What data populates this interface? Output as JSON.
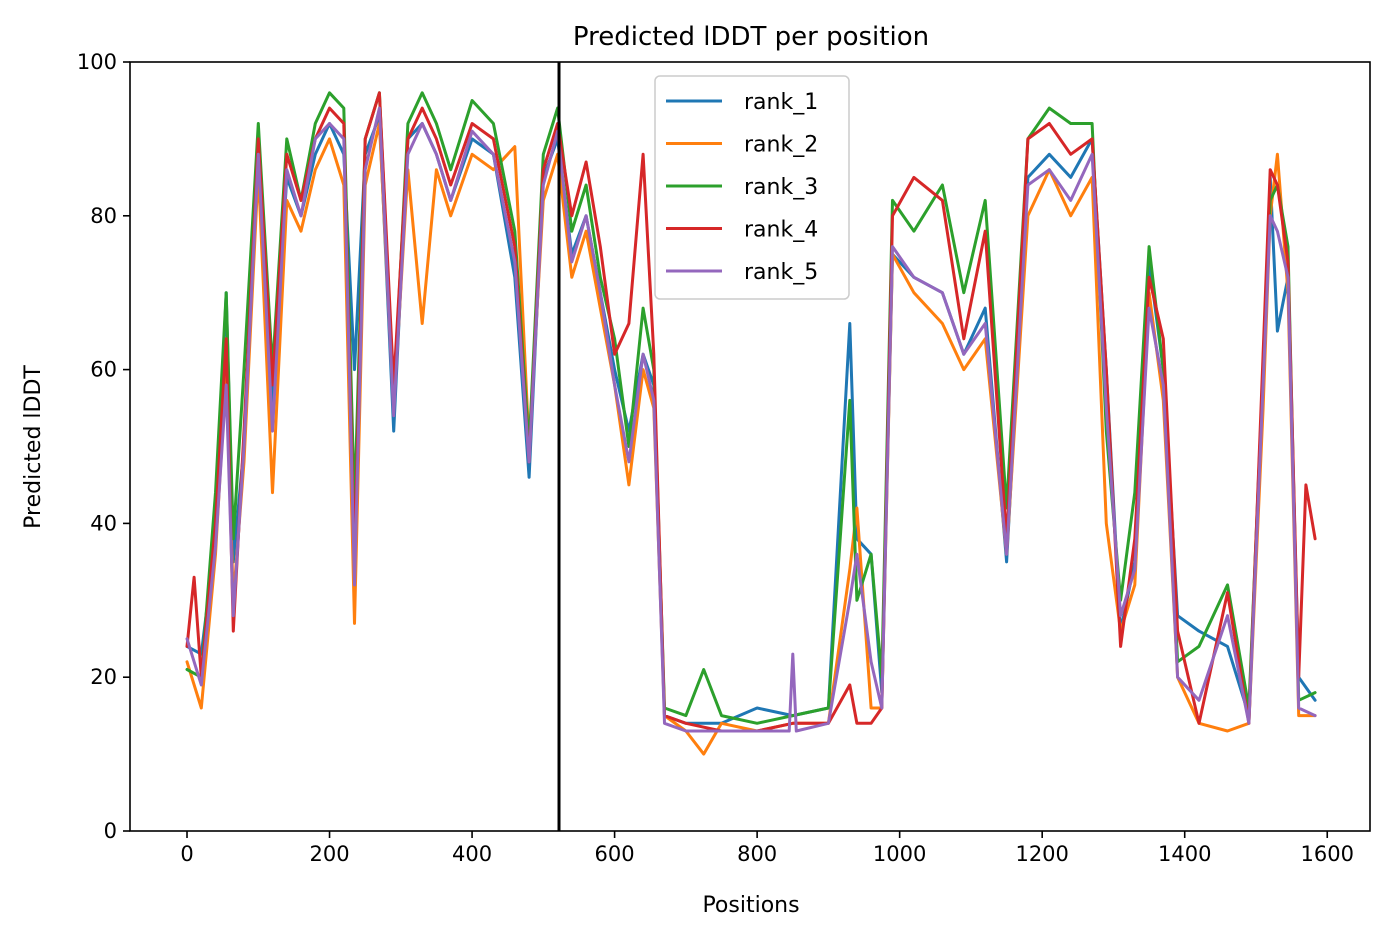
{
  "chart_data": {
    "type": "line",
    "title": "Predicted lDDT per position",
    "xlabel": "Positions",
    "ylabel": "Predicted lDDT",
    "xlim": [
      -80,
      1660
    ],
    "ylim": [
      0,
      100
    ],
    "xticks": [
      0,
      200,
      400,
      600,
      800,
      1000,
      1200,
      1400,
      1600
    ],
    "yticks": [
      0,
      20,
      40,
      60,
      80,
      100
    ],
    "grid": false,
    "legend_position": "top-center",
    "vline_x": 522,
    "series": [
      {
        "name": "rank_1",
        "color": "#1f77b4",
        "x": [
          0,
          20,
          40,
          55,
          65,
          80,
          100,
          120,
          140,
          160,
          180,
          200,
          220,
          235,
          250,
          270,
          290,
          310,
          330,
          350,
          370,
          400,
          430,
          460,
          480,
          500,
          520,
          540,
          560,
          580,
          600,
          620,
          640,
          655,
          670,
          700,
          750,
          800,
          850,
          900,
          930,
          940,
          960,
          975,
          990,
          1020,
          1060,
          1090,
          1120,
          1150,
          1180,
          1210,
          1240,
          1270,
          1290,
          1310,
          1330,
          1350,
          1370,
          1390,
          1420,
          1460,
          1490,
          1510,
          1520,
          1530,
          1545,
          1560,
          1583
        ],
        "y": [
          24,
          23,
          38,
          70,
          35,
          50,
          88,
          55,
          85,
          80,
          88,
          92,
          88,
          60,
          88,
          93,
          52,
          90,
          92,
          88,
          82,
          90,
          88,
          72,
          46,
          85,
          90,
          75,
          80,
          70,
          60,
          52,
          62,
          58,
          15,
          14,
          14,
          16,
          15,
          16,
          66,
          38,
          36,
          18,
          75,
          72,
          70,
          62,
          68,
          35,
          85,
          88,
          85,
          90,
          60,
          26,
          35,
          74,
          60,
          28,
          26,
          24,
          15,
          60,
          85,
          65,
          72,
          20,
          17
        ]
      },
      {
        "name": "rank_2",
        "color": "#ff7f0e",
        "x": [
          0,
          20,
          40,
          55,
          65,
          80,
          100,
          120,
          140,
          160,
          180,
          200,
          220,
          235,
          250,
          270,
          290,
          310,
          330,
          350,
          370,
          400,
          430,
          460,
          480,
          500,
          520,
          540,
          560,
          580,
          600,
          620,
          640,
          655,
          670,
          700,
          725,
          750,
          800,
          850,
          900,
          930,
          940,
          960,
          975,
          990,
          1020,
          1060,
          1090,
          1120,
          1150,
          1180,
          1210,
          1240,
          1270,
          1290,
          1310,
          1330,
          1350,
          1370,
          1390,
          1420,
          1460,
          1490,
          1510,
          1520,
          1530,
          1545,
          1560,
          1583
        ],
        "y": [
          22,
          16,
          36,
          60,
          30,
          48,
          86,
          44,
          82,
          78,
          86,
          90,
          84,
          27,
          84,
          92,
          55,
          86,
          66,
          86,
          80,
          88,
          86,
          89,
          50,
          82,
          88,
          72,
          78,
          68,
          58,
          45,
          60,
          55,
          15,
          13,
          10,
          14,
          13,
          14,
          14,
          34,
          42,
          16,
          16,
          75,
          70,
          66,
          60,
          64,
          36,
          80,
          86,
          80,
          85,
          40,
          26,
          32,
          70,
          56,
          20,
          14,
          13,
          14,
          55,
          80,
          88,
          70,
          15,
          15
        ]
      },
      {
        "name": "rank_3",
        "color": "#2ca02c",
        "x": [
          0,
          20,
          40,
          55,
          65,
          80,
          100,
          120,
          140,
          160,
          180,
          200,
          220,
          235,
          250,
          270,
          290,
          310,
          330,
          350,
          370,
          400,
          430,
          460,
          480,
          500,
          520,
          540,
          560,
          580,
          600,
          620,
          640,
          655,
          670,
          700,
          725,
          750,
          800,
          850,
          900,
          930,
          940,
          960,
          975,
          990,
          1020,
          1060,
          1090,
          1120,
          1150,
          1180,
          1210,
          1240,
          1270,
          1290,
          1310,
          1330,
          1350,
          1370,
          1390,
          1420,
          1460,
          1490,
          1510,
          1520,
          1530,
          1545,
          1560,
          1583
        ],
        "y": [
          21,
          20,
          44,
          70,
          38,
          60,
          92,
          60,
          90,
          82,
          92,
          96,
          94,
          42,
          90,
          96,
          56,
          92,
          96,
          92,
          86,
          95,
          92,
          78,
          50,
          88,
          94,
          78,
          84,
          72,
          64,
          50,
          68,
          60,
          16,
          15,
          21,
          15,
          14,
          15,
          16,
          56,
          30,
          36,
          20,
          82,
          78,
          84,
          70,
          82,
          42,
          90,
          94,
          92,
          92,
          52,
          30,
          44,
          76,
          60,
          22,
          24,
          32,
          16,
          60,
          82,
          84,
          76,
          17,
          18
        ]
      },
      {
        "name": "rank_4",
        "color": "#d62728",
        "x": [
          0,
          10,
          20,
          40,
          55,
          65,
          80,
          100,
          120,
          140,
          160,
          180,
          200,
          220,
          235,
          250,
          270,
          290,
          310,
          330,
          350,
          370,
          400,
          430,
          460,
          480,
          500,
          520,
          540,
          560,
          580,
          600,
          620,
          640,
          655,
          670,
          700,
          750,
          800,
          850,
          900,
          930,
          940,
          960,
          975,
          990,
          1020,
          1060,
          1090,
          1120,
          1150,
          1180,
          1210,
          1240,
          1270,
          1290,
          1310,
          1330,
          1350,
          1370,
          1390,
          1420,
          1460,
          1490,
          1510,
          1520,
          1530,
          1545,
          1560,
          1570,
          1583
        ],
        "y": [
          24,
          33,
          20,
          40,
          64,
          26,
          52,
          90,
          58,
          88,
          82,
          90,
          94,
          92,
          35,
          90,
          96,
          58,
          90,
          94,
          90,
          84,
          92,
          90,
          76,
          48,
          86,
          92,
          80,
          87,
          76,
          62,
          66,
          88,
          62,
          15,
          14,
          13,
          13,
          14,
          14,
          19,
          14,
          14,
          16,
          80,
          85,
          82,
          64,
          78,
          38,
          90,
          92,
          88,
          90,
          60,
          24,
          38,
          72,
          64,
          26,
          14,
          31,
          14,
          62,
          86,
          84,
          74,
          20,
          45,
          38
        ]
      },
      {
        "name": "rank_5",
        "color": "#9467bd",
        "x": [
          0,
          20,
          40,
          55,
          65,
          80,
          100,
          120,
          140,
          160,
          180,
          200,
          220,
          235,
          250,
          270,
          290,
          310,
          330,
          350,
          370,
          400,
          430,
          460,
          480,
          500,
          520,
          540,
          560,
          580,
          600,
          620,
          640,
          655,
          670,
          700,
          750,
          800,
          845,
          850,
          855,
          900,
          930,
          940,
          960,
          975,
          990,
          1020,
          1060,
          1090,
          1120,
          1150,
          1180,
          1210,
          1240,
          1270,
          1290,
          1310,
          1330,
          1350,
          1370,
          1390,
          1420,
          1460,
          1490,
          1510,
          1520,
          1530,
          1545,
          1560,
          1583
        ],
        "y": [
          25,
          19,
          37,
          58,
          28,
          50,
          88,
          52,
          86,
          80,
          90,
          92,
          90,
          32,
          86,
          94,
          54,
          88,
          92,
          88,
          82,
          91,
          88,
          74,
          48,
          84,
          91,
          74,
          80,
          70,
          58,
          48,
          62,
          56,
          14,
          13,
          13,
          13,
          13,
          23,
          13,
          14,
          30,
          36,
          22,
          16,
          76,
          72,
          70,
          62,
          66,
          36,
          84,
          86,
          82,
          88,
          55,
          28,
          34,
          68,
          58,
          20,
          17,
          28,
          14,
          58,
          80,
          78,
          72,
          16,
          15
        ]
      }
    ]
  }
}
